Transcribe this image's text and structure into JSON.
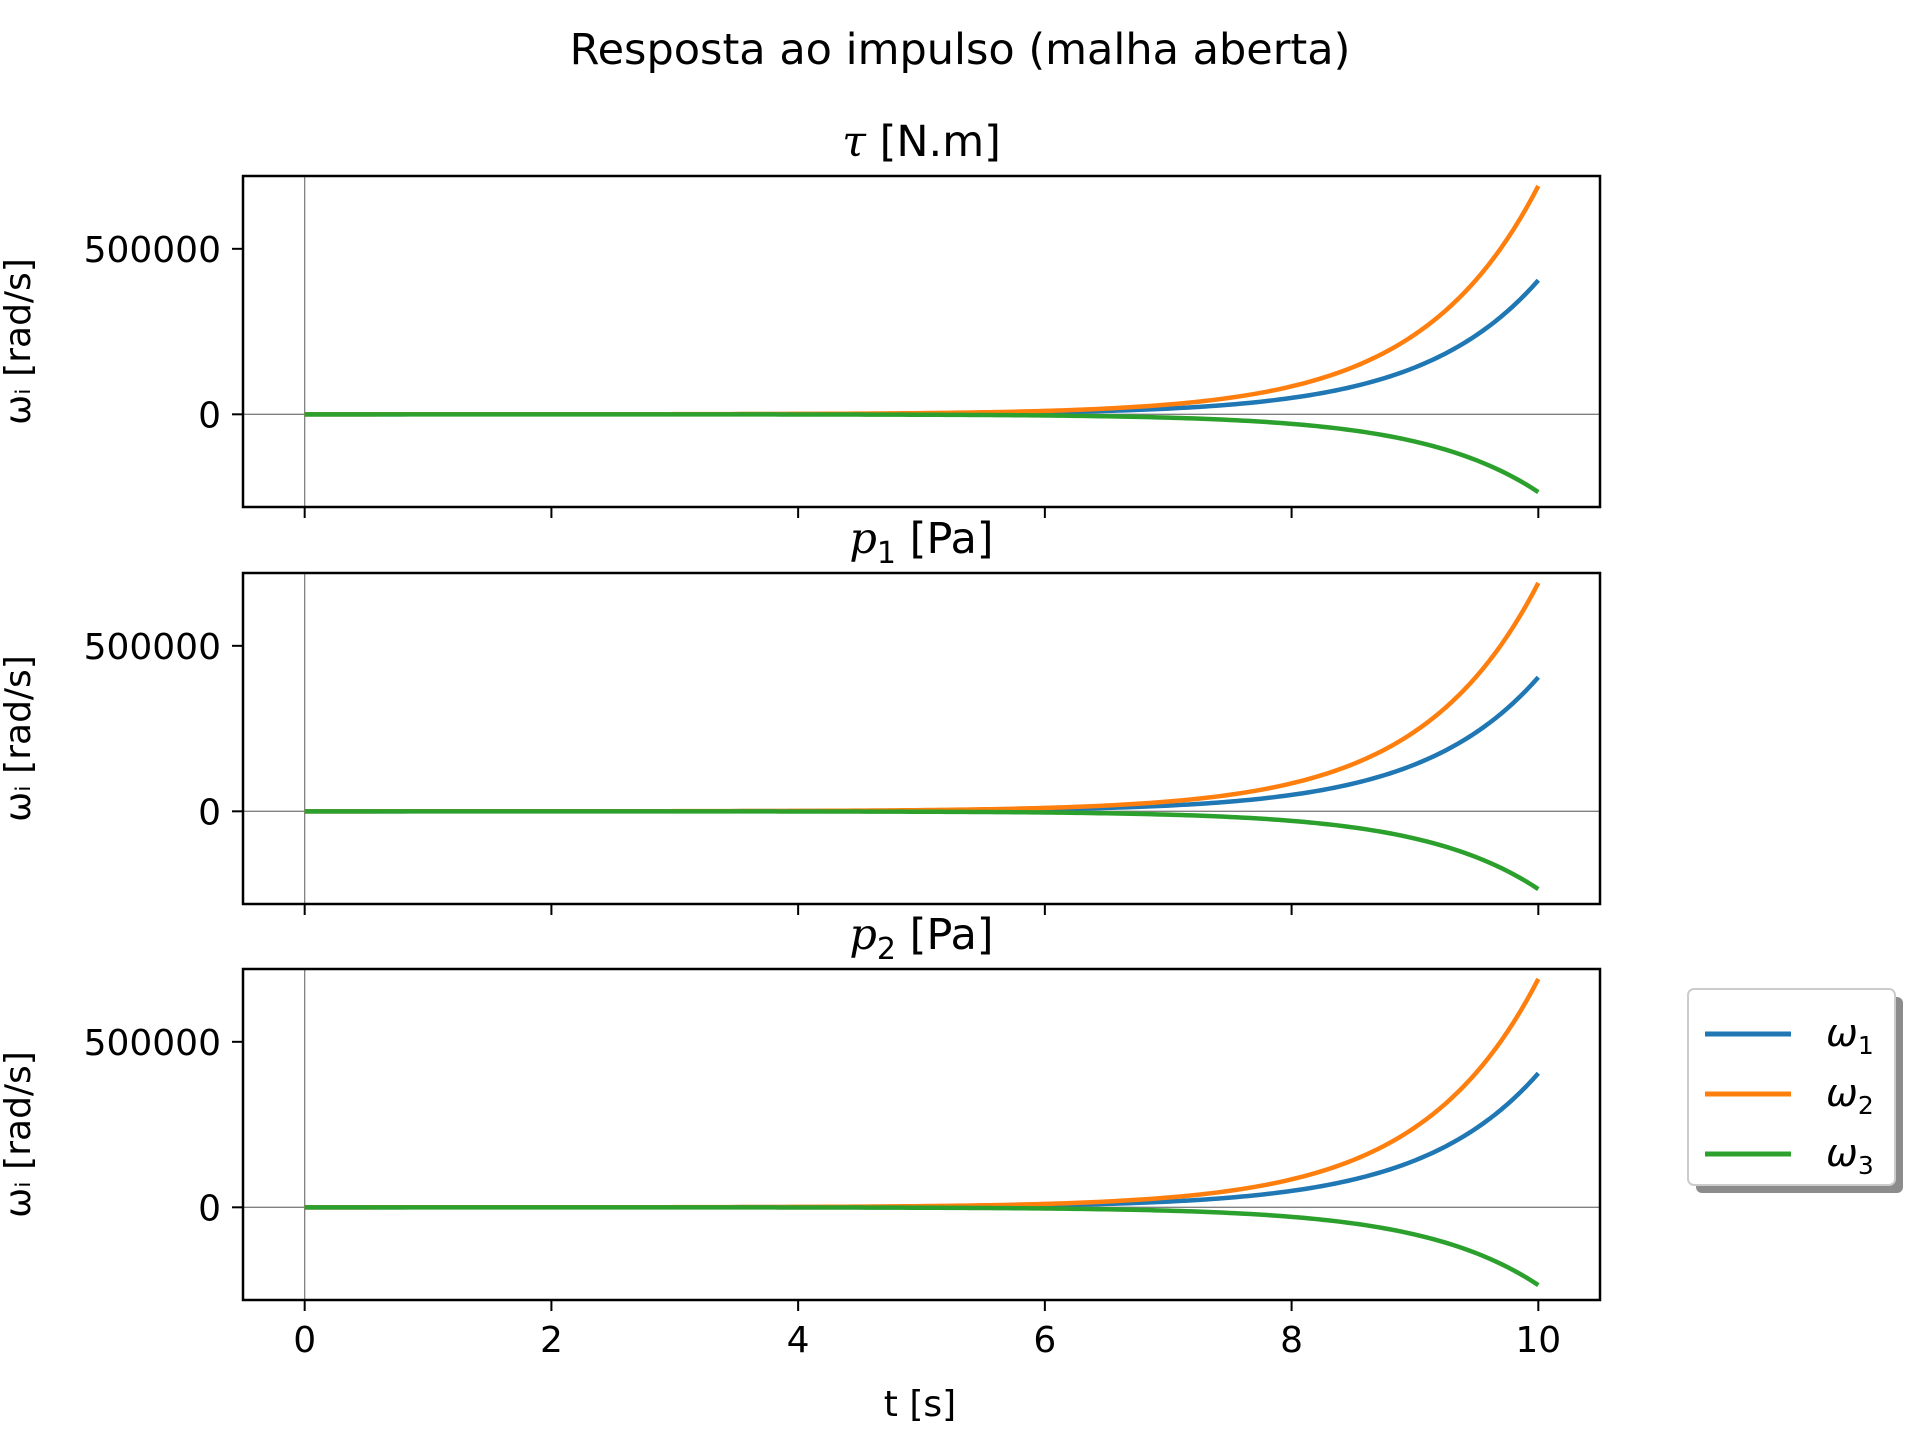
{
  "chart_data": {
    "type": "line",
    "suptitle": "Resposta ao impulso (malha aberta)",
    "xlabel": "t [s]",
    "ylabel": "ωᵢ [rad/s]",
    "xlim": [
      -0.5,
      10.5
    ],
    "ylim": [
      -280000,
      720000
    ],
    "x_ticks": [
      0,
      2,
      4,
      6,
      8,
      10
    ],
    "y_ticks": [
      0,
      500000
    ],
    "grid": false,
    "legend_position": "right",
    "series": [
      {
        "name": "ω₁",
        "color": "#1f77b4",
        "final_value": 405000,
        "growth_rate": 1.05
      },
      {
        "name": "ω₂",
        "color": "#ff7f0e",
        "final_value": 690000,
        "growth_rate": 1.05
      },
      {
        "name": "ω₃",
        "color": "#2ca02c",
        "final_value": -235000,
        "growth_rate": 1.05
      }
    ],
    "panels": [
      {
        "title_main": "τ",
        "title_sub": "",
        "title_unit": "[N.m]"
      },
      {
        "title_main": "p",
        "title_sub": "1",
        "title_unit": "[Pa]"
      },
      {
        "title_main": "p",
        "title_sub": "2",
        "title_unit": "[Pa]"
      }
    ],
    "legend": [
      {
        "symbol": "ω",
        "sub": "1"
      },
      {
        "symbol": "ω",
        "sub": "2"
      },
      {
        "symbol": "ω",
        "sub": "3"
      }
    ]
  }
}
